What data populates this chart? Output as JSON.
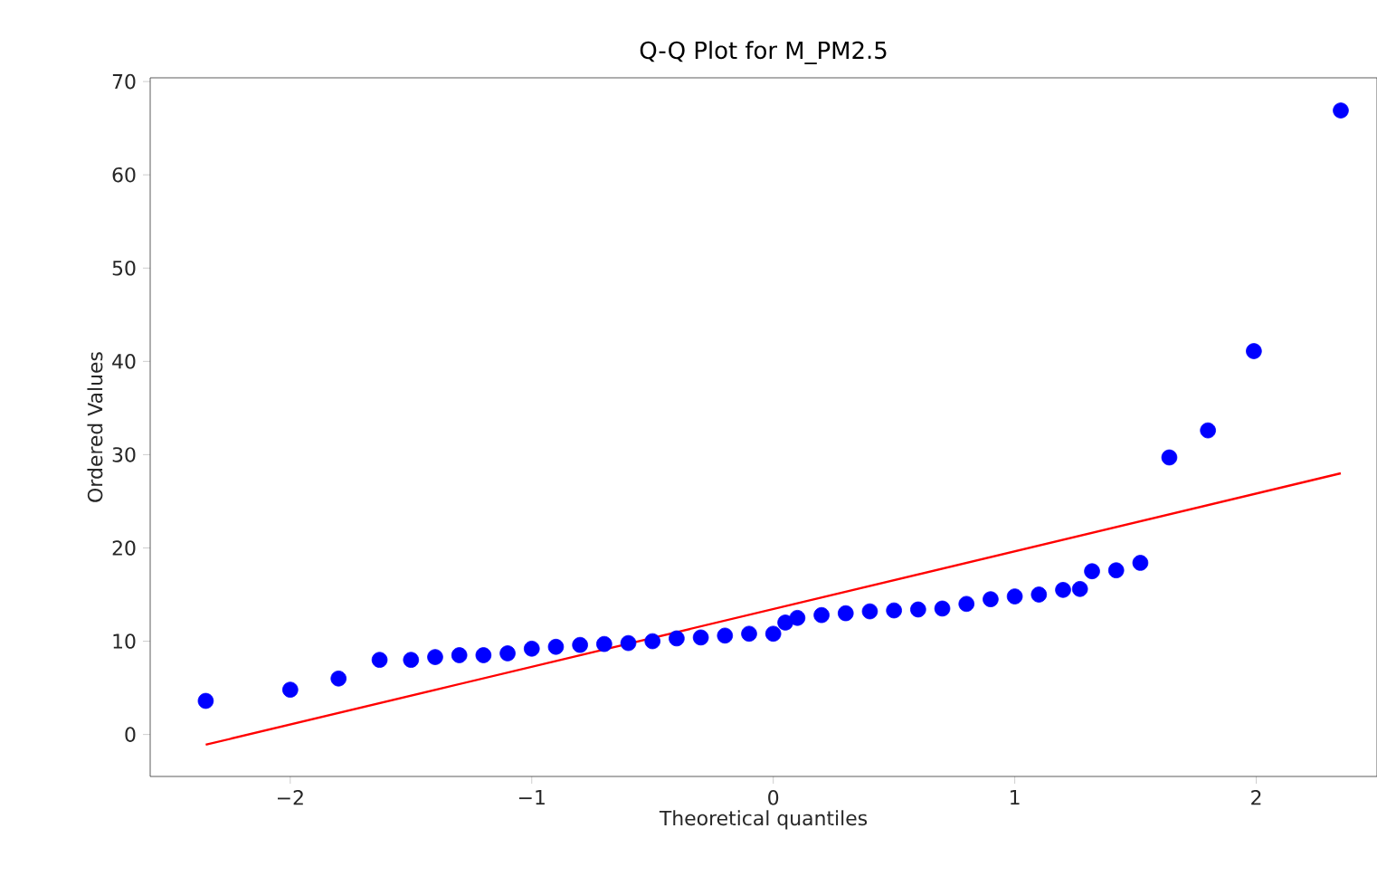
{
  "chart_data": {
    "type": "scatter",
    "title": "Q-Q Plot for M_PM2.5",
    "xlabel": "Theoretical quantiles",
    "ylabel": "Ordered Values",
    "xlim": [
      -2.58,
      2.5
    ],
    "ylim": [
      -4.5,
      70.4
    ],
    "xticks": [
      {
        "value": -2,
        "label": "−2"
      },
      {
        "value": -1,
        "label": "−1"
      },
      0,
      1,
      2
    ],
    "yticks": [
      0,
      10,
      20,
      30,
      40,
      50,
      60,
      70
    ],
    "grid": false,
    "series": [
      {
        "color": "#0000ff",
        "marker": "circle",
        "x": [
          -2.35,
          -2.0,
          -1.8,
          -1.63,
          -1.5,
          -1.4,
          -1.3,
          -1.2,
          -1.1,
          -1.0,
          -0.9,
          -0.8,
          -0.7,
          -0.6,
          -0.5,
          -0.4,
          -0.3,
          -0.2,
          -0.1,
          0.0,
          0.05,
          0.1,
          0.2,
          0.3,
          0.4,
          0.5,
          0.6,
          0.7,
          0.8,
          0.9,
          1.0,
          1.1,
          1.2,
          1.27,
          1.32,
          1.42,
          1.52,
          1.64,
          1.8,
          1.99,
          2.35
        ],
        "values": [
          3.6,
          4.8,
          6.0,
          8.0,
          8.0,
          8.3,
          8.5,
          8.5,
          8.7,
          9.2,
          9.4,
          9.6,
          9.7,
          9.8,
          10.0,
          10.3,
          10.4,
          10.6,
          10.8,
          10.8,
          12.0,
          12.5,
          12.8,
          13.0,
          13.2,
          13.3,
          13.4,
          13.5,
          14.0,
          14.5,
          14.8,
          15.0,
          15.5,
          15.6,
          17.5,
          17.6,
          18.4,
          29.7,
          32.6,
          41.1,
          66.9
        ]
      },
      {
        "type": "line",
        "color": "#ff0000",
        "marker": "none",
        "x": [
          -2.35,
          2.35
        ],
        "values": [
          -1.1,
          28.0
        ]
      }
    ]
  }
}
